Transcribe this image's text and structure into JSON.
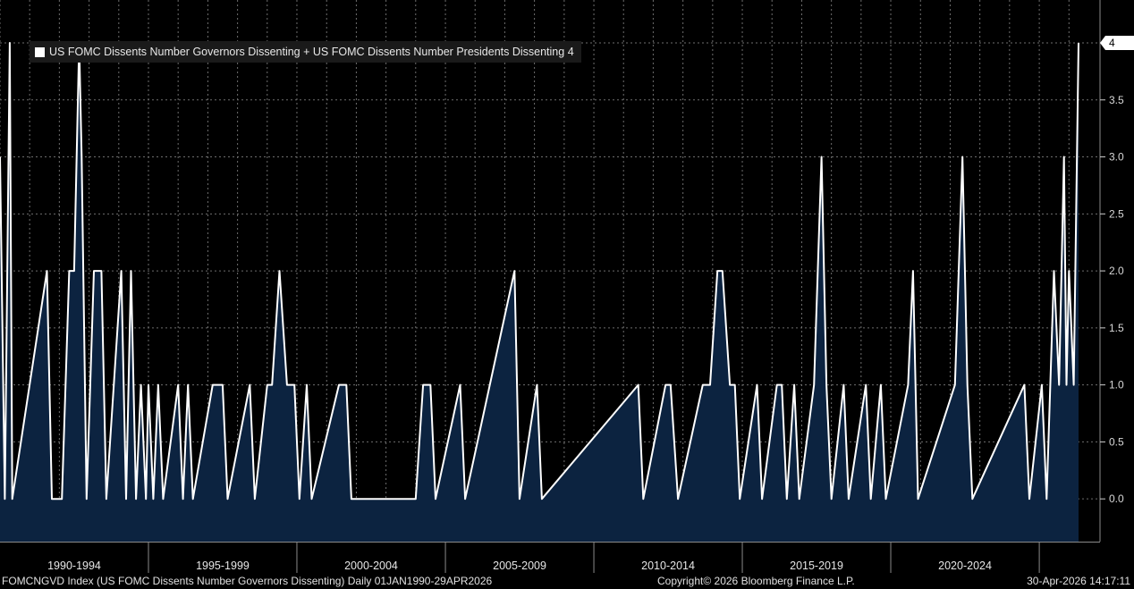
{
  "legend": {
    "label": "US FOMC Dissents Number Governors Dissenting + US FOMC Dissents Number Presidents Dissenting 4"
  },
  "footer": {
    "left": "FOMCNGVD Index (US FOMC Dissents Number Governors Dissenting) Daily 01JAN1990-29APR2026",
    "center": "Copyright© 2026 Bloomberg Finance L.P.",
    "right": "30-Apr-2026 14:17:11"
  },
  "colors": {
    "background": "#000000",
    "line": "#ffffff",
    "area": "#0c2340",
    "grid": "#6e6e6e",
    "last_value_tag_bg": "#ffffff",
    "last_value_tag_text": "#000000"
  },
  "chart_data": {
    "type": "area",
    "title": "",
    "legend_position": "top-left",
    "grid": true,
    "y_axis_side": "right",
    "ylim": [
      -0.375,
      4
    ],
    "y_ticks": [
      "0.0",
      "0.5",
      "1.0",
      "1.5",
      "2.0",
      "2.5",
      "3.0",
      "3.5",
      "4"
    ],
    "x_period_labels": [
      "1990-1994",
      "1995-1999",
      "2000-2004",
      "2005-2009",
      "2010-2014",
      "2015-2019",
      "2020-2024"
    ],
    "x_range": [
      "1990-01-01",
      "2026-04-29"
    ],
    "last_value": 4,
    "last_value_label": "4",
    "series": [
      {
        "name": "US FOMC Dissents Number Governors Dissenting + US FOMC Dissents Number Presidents Dissenting",
        "points": [
          [
            "1990-01-01",
            3
          ],
          [
            "1990-03-01",
            0
          ],
          [
            "1990-05-01",
            4
          ],
          [
            "1990-06-01",
            0
          ],
          [
            "1991-08-01",
            2
          ],
          [
            "1991-10-01",
            0
          ],
          [
            "1992-02-01",
            0
          ],
          [
            "1992-05-01",
            2
          ],
          [
            "1992-07-01",
            2
          ],
          [
            "1992-09-01",
            4
          ],
          [
            "1992-10-01",
            3
          ],
          [
            "1992-12-01",
            0
          ],
          [
            "1993-03-01",
            2
          ],
          [
            "1993-06-01",
            2
          ],
          [
            "1993-08-01",
            0
          ],
          [
            "1994-02-01",
            2
          ],
          [
            "1994-04-01",
            0
          ],
          [
            "1994-06-01",
            2
          ],
          [
            "1994-08-01",
            0
          ],
          [
            "1994-10-01",
            1
          ],
          [
            "1994-12-01",
            0
          ],
          [
            "1995-01-01",
            1
          ],
          [
            "1995-03-01",
            0
          ],
          [
            "1995-05-01",
            1
          ],
          [
            "1995-07-01",
            0
          ],
          [
            "1996-01-01",
            1
          ],
          [
            "1996-03-01",
            0
          ],
          [
            "1996-05-01",
            1
          ],
          [
            "1996-07-01",
            0
          ],
          [
            "1997-03-01",
            1
          ],
          [
            "1997-07-01",
            1
          ],
          [
            "1997-09-01",
            0
          ],
          [
            "1998-06-01",
            1
          ],
          [
            "1998-08-01",
            0
          ],
          [
            "1999-01-01",
            1
          ],
          [
            "1999-03-01",
            1
          ],
          [
            "1999-06-01",
            2
          ],
          [
            "1999-09-01",
            1
          ],
          [
            "1999-12-01",
            1
          ],
          [
            "2000-02-01",
            0
          ],
          [
            "2000-05-01",
            1
          ],
          [
            "2000-07-01",
            0
          ],
          [
            "2001-06-01",
            1
          ],
          [
            "2001-09-01",
            1
          ],
          [
            "2001-11-01",
            0
          ],
          [
            "2004-01-01",
            0
          ],
          [
            "2004-04-01",
            1
          ],
          [
            "2004-07-01",
            1
          ],
          [
            "2004-09-01",
            0
          ],
          [
            "2005-07-01",
            1
          ],
          [
            "2005-09-01",
            0
          ],
          [
            "2007-05-01",
            2
          ],
          [
            "2007-07-01",
            0
          ],
          [
            "2008-02-01",
            1
          ],
          [
            "2008-04-01",
            0
          ],
          [
            "2011-07-01",
            1
          ],
          [
            "2011-09-01",
            0
          ],
          [
            "2012-06-01",
            1
          ],
          [
            "2012-08-01",
            1
          ],
          [
            "2012-11-01",
            0
          ],
          [
            "2013-09-01",
            1
          ],
          [
            "2013-12-01",
            1
          ],
          [
            "2014-03-01",
            2
          ],
          [
            "2014-05-01",
            2
          ],
          [
            "2014-08-01",
            1
          ],
          [
            "2014-10-01",
            1
          ],
          [
            "2014-12-01",
            0
          ],
          [
            "2015-07-01",
            1
          ],
          [
            "2015-09-01",
            0
          ],
          [
            "2016-03-01",
            1
          ],
          [
            "2016-05-01",
            1
          ],
          [
            "2016-07-01",
            0
          ],
          [
            "2016-10-01",
            1
          ],
          [
            "2016-12-01",
            0
          ],
          [
            "2017-06-01",
            1
          ],
          [
            "2017-09-01",
            3
          ],
          [
            "2017-11-01",
            1
          ],
          [
            "2018-01-01",
            0
          ],
          [
            "2018-06-01",
            1
          ],
          [
            "2018-08-01",
            0
          ],
          [
            "2019-03-01",
            1
          ],
          [
            "2019-05-01",
            0
          ],
          [
            "2019-09-01",
            1
          ],
          [
            "2019-11-01",
            0
          ],
          [
            "2020-08-01",
            1
          ],
          [
            "2020-10-01",
            2
          ],
          [
            "2020-12-01",
            0
          ],
          [
            "2022-03-01",
            1
          ],
          [
            "2022-06-01",
            3
          ],
          [
            "2022-08-01",
            1
          ],
          [
            "2022-10-01",
            0
          ],
          [
            "2024-07-01",
            1
          ],
          [
            "2024-09-01",
            0
          ],
          [
            "2025-02-01",
            1
          ],
          [
            "2025-04-01",
            0
          ],
          [
            "2025-07-01",
            2
          ],
          [
            "2025-09-01",
            1
          ],
          [
            "2025-11-01",
            3
          ],
          [
            "2025-12-01",
            1
          ],
          [
            "2026-01-01",
            2
          ],
          [
            "2026-03-01",
            1
          ],
          [
            "2026-04-29",
            4
          ]
        ]
      }
    ]
  }
}
